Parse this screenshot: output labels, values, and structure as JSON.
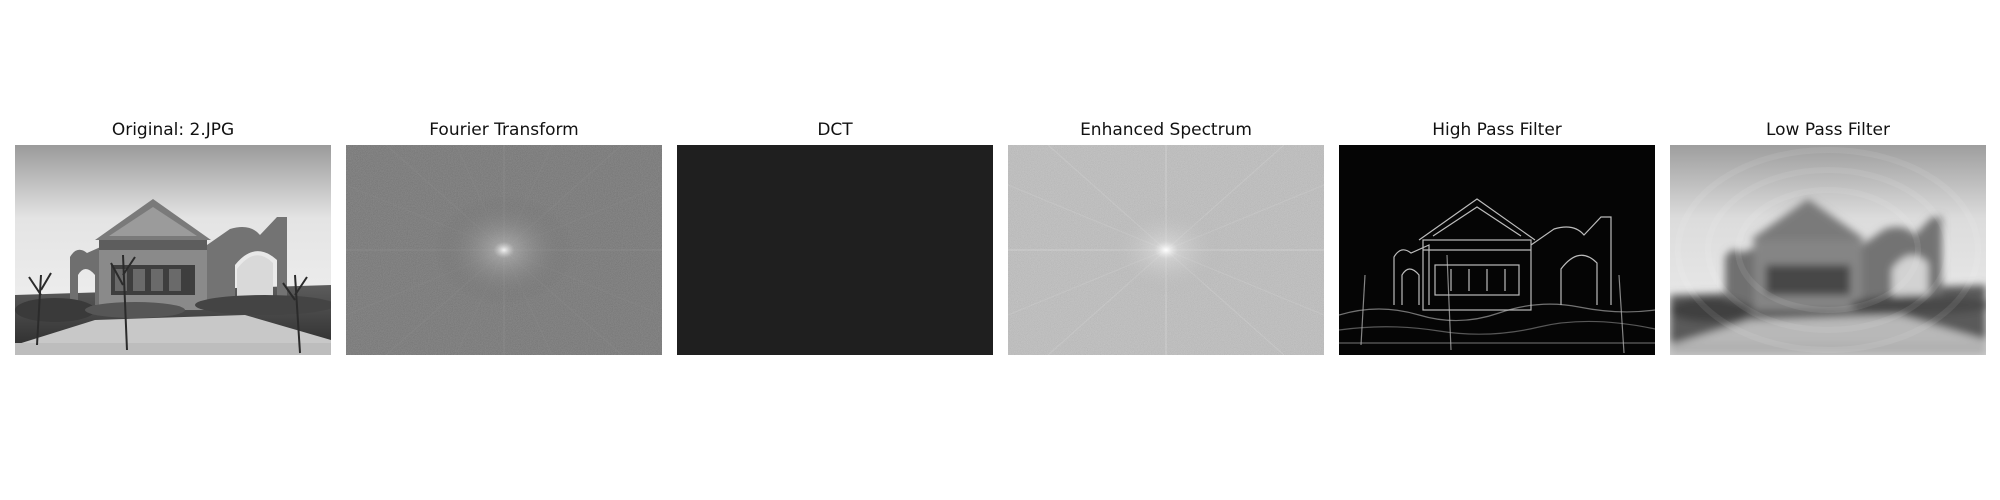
{
  "figure": {
    "panels": [
      {
        "id": "original",
        "title": "Original: 2.JPG",
        "image": "grayscale photo of a ruined gate building with bare trees"
      },
      {
        "id": "fourier",
        "title": "Fourier Transform",
        "image": "magnitude spectrum with bright center and radiating streaks"
      },
      {
        "id": "dct",
        "title": "DCT",
        "image": "near-uniform dark gray field"
      },
      {
        "id": "enhanced",
        "title": "Enhanced Spectrum",
        "image": "light gray noisy spectrum with bright center"
      },
      {
        "id": "highpass",
        "title": "High Pass Filter",
        "image": "black image with white edge outlines of the gate"
      },
      {
        "id": "lowpass",
        "title": "Low Pass Filter",
        "image": "blurred grayscale version of the gate photo with ringing"
      }
    ]
  }
}
